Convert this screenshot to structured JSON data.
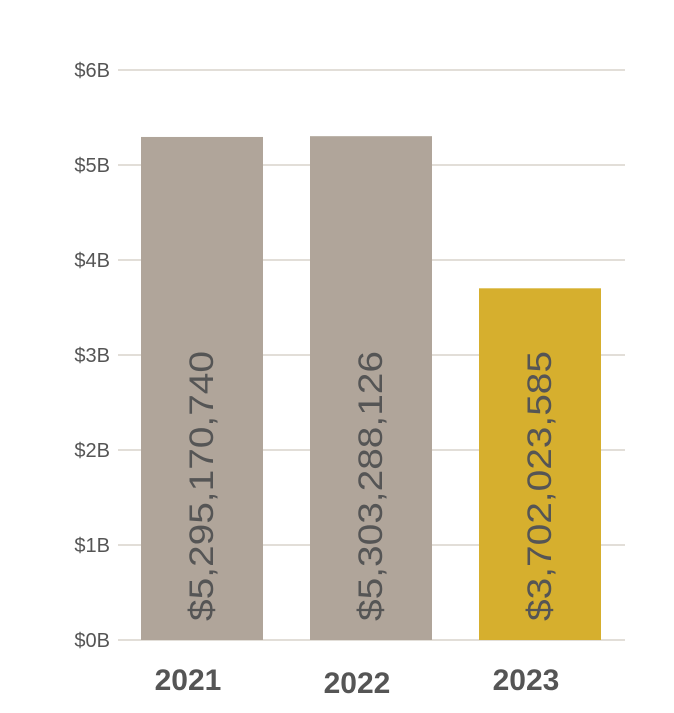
{
  "chart_data": {
    "type": "bar",
    "categories": [
      "2021",
      "2022",
      "2023"
    ],
    "values": [
      5295170740,
      5303288126,
      3702023585
    ],
    "data_labels": [
      "$5,295,170,740",
      "$5,303,288,126",
      "$3,702,023,585"
    ],
    "y_ticks": [
      {
        "value": 0,
        "label": "$0B"
      },
      {
        "value": 1000000000,
        "label": "$1B"
      },
      {
        "value": 2000000000,
        "label": "$2B"
      },
      {
        "value": 3000000000,
        "label": "$3B"
      },
      {
        "value": 4000000000,
        "label": "$4B"
      },
      {
        "value": 5000000000,
        "label": "$5B"
      },
      {
        "value": 6000000000,
        "label": "$6B"
      }
    ],
    "ylim": [
      0,
      6000000000
    ],
    "grid": true,
    "colors": [
      "#b0a59a",
      "#b0a59a",
      "#d6af2e"
    ]
  }
}
